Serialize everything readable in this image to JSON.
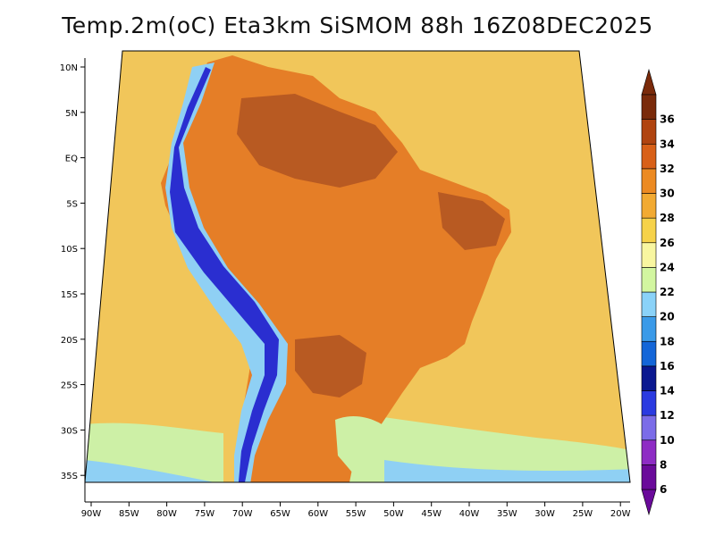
{
  "title": "Temp.2m(oC) Eta3km SiSMOM 88h 16Z08DEC2025",
  "lon_labels": [
    "90W",
    "85W",
    "80W",
    "75W",
    "70W",
    "65W",
    "60W",
    "55W",
    "50W",
    "45W",
    "40W",
    "35W",
    "30W",
    "25W",
    "20W"
  ],
  "lat_labels": [
    "10N",
    "5N",
    "EQ",
    "5S",
    "10S",
    "15S",
    "20S",
    "25S",
    "30S",
    "35S"
  ],
  "colorbar": {
    "labels": [
      "6",
      "8",
      "10",
      "12",
      "14",
      "16",
      "18",
      "20",
      "22",
      "24",
      "26",
      "28",
      "30",
      "32",
      "34",
      "36"
    ],
    "colors": [
      "#6a0a9a",
      "#8e2cc4",
      "#7b6ce8",
      "#2a3ae0",
      "#0a1890",
      "#1466d8",
      "#3a9ae8",
      "#8ad2f8",
      "#d2f6a0",
      "#f8f6a0",
      "#f6d24a",
      "#f2aa32",
      "#ec8a22",
      "#d86018",
      "#b04410",
      "#7a2a0a"
    ]
  },
  "colors": {
    "ocean": "#f1c65a",
    "land_warm": "#e57e27",
    "land_hot": "#b85a22",
    "cool_water": "#cdf0a6",
    "cold_water": "#8fd0f4",
    "andes_cold": "#2a2ed0"
  }
}
